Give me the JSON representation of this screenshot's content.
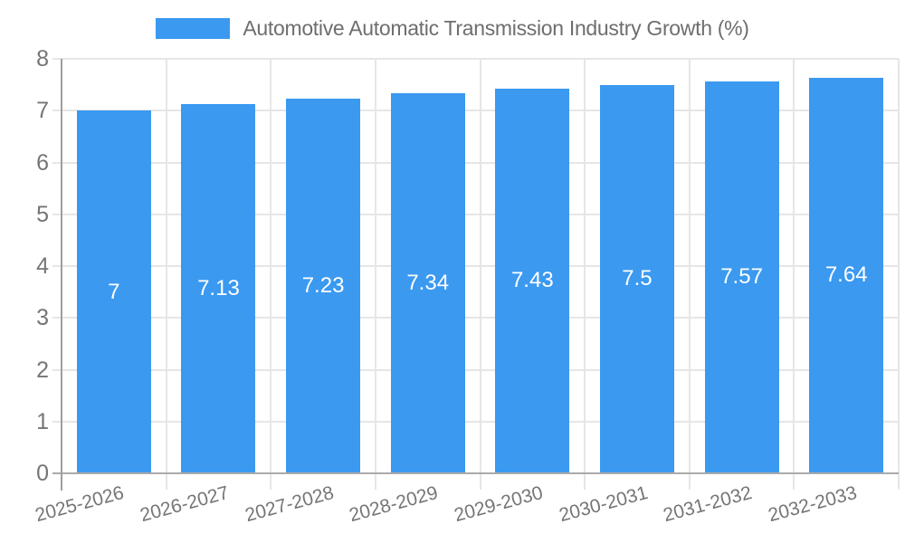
{
  "legend": {
    "label": "Automotive Automatic Transmission Industry Growth (%)",
    "swatch_color": "#3b99f0",
    "position": "top"
  },
  "chart_data": {
    "type": "bar",
    "title": "Automotive Automatic Transmission Industry Growth (%)",
    "categories": [
      "2025-2026",
      "2026-2027",
      "2027-2028",
      "2028-2029",
      "2029-2030",
      "2030-2031",
      "2031-2032",
      "2032-2033"
    ],
    "values": [
      7,
      7.13,
      7.23,
      7.34,
      7.43,
      7.5,
      7.57,
      7.64
    ],
    "data_labels": [
      "7",
      "7.13",
      "7.23",
      "7.34",
      "7.43",
      "7.5",
      "7.57",
      "7.64"
    ],
    "xlabel": "",
    "ylabel": "",
    "ylim": [
      0,
      8
    ],
    "yticks": [
      0,
      1,
      2,
      3,
      4,
      5,
      6,
      7,
      8
    ],
    "grid": true,
    "legend_position": "top",
    "bar_color": "#3b99f0",
    "value_label_color": "#ffffff",
    "axis_text_color": "#757575",
    "gridline_color": "#e6e6e6"
  }
}
